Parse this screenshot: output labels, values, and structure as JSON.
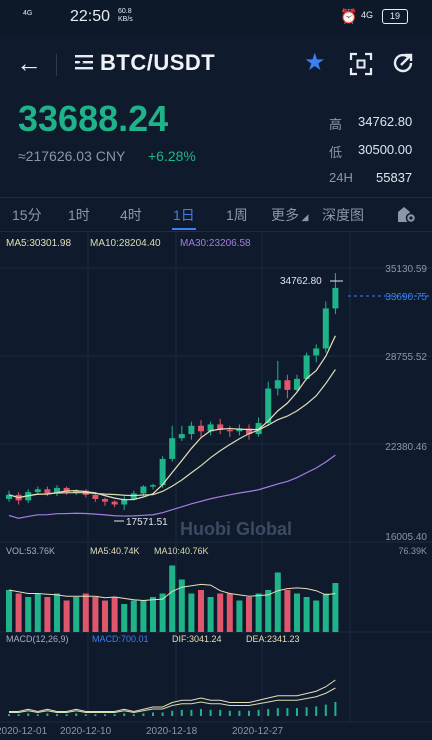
{
  "status_bar": {
    "signal": "4G",
    "time": "22:50",
    "speed": "60.8",
    "speed_unit": "KB/s",
    "network": "4G",
    "battery": "19"
  },
  "header": {
    "pair": "BTC/USDT"
  },
  "ticker": {
    "last": "33688.24",
    "cny": "≈217626.03 CNY",
    "change": "+6.28%",
    "stats": [
      {
        "label": "高",
        "value": "34762.80"
      },
      {
        "label": "低",
        "value": "30500.00"
      },
      {
        "label": "24H",
        "value": "55837"
      }
    ]
  },
  "tabs": [
    "15分",
    "1时",
    "4时",
    "1日",
    "1周",
    "更多",
    "深度图"
  ],
  "active_tab": "1日",
  "indicators": {
    "ma5": "MA5:30301.98",
    "ma10": "MA10:28204.40",
    "ma30": "MA30:23206.58"
  },
  "volume_indicators": {
    "vol": "VOL:53.76K",
    "ma5": "MA5:40.74K",
    "ma10": "MA10:40.76K",
    "max": "76.39K"
  },
  "macd_indicators": {
    "title": "MACD(12,26,9)",
    "macd": "MACD:700.01",
    "dif": "DIF:3041.24",
    "dea": "DEA:2341.23"
  },
  "watermark": "Huobi Global",
  "colors": {
    "up": "#1fb38a",
    "down": "#e0566b",
    "accent": "#3b7ff2",
    "ma5": "#e8dfb8",
    "ma10": "#d8ddb0",
    "ma30": "#a77ce0"
  },
  "chart_data": {
    "type": "candlestick",
    "price_axis": [
      "35130.59",
      "28755.52",
      "22380.46",
      "16005.40"
    ],
    "current_price_label": "33690.75",
    "high_label": "34762.80",
    "low_label": "17571.51",
    "dates": [
      "2020-12-01",
      "2020-12-10",
      "2020-12-18",
      "2020-12-27"
    ],
    "candles": [
      {
        "o": 18400,
        "c": 18700,
        "h": 19000,
        "l": 18200
      },
      {
        "o": 18700,
        "c": 18300,
        "h": 18900,
        "l": 18000
      },
      {
        "o": 18300,
        "c": 18900,
        "h": 19100,
        "l": 18100
      },
      {
        "o": 18900,
        "c": 19100,
        "h": 19300,
        "l": 18700
      },
      {
        "o": 19100,
        "c": 18800,
        "h": 19300,
        "l": 18600
      },
      {
        "o": 18800,
        "c": 19200,
        "h": 19400,
        "l": 18600
      },
      {
        "o": 19200,
        "c": 18900,
        "h": 19300,
        "l": 18700
      },
      {
        "o": 18900,
        "c": 19000,
        "h": 19100,
        "l": 18700
      },
      {
        "o": 19000,
        "c": 18700,
        "h": 19100,
        "l": 18500
      },
      {
        "o": 18700,
        "c": 18400,
        "h": 18800,
        "l": 18200
      },
      {
        "o": 18400,
        "c": 18200,
        "h": 18500,
        "l": 17900
      },
      {
        "o": 18200,
        "c": 18000,
        "h": 18300,
        "l": 17800
      },
      {
        "o": 18000,
        "c": 18400,
        "h": 18600,
        "l": 17600
      },
      {
        "o": 18400,
        "c": 18800,
        "h": 19000,
        "l": 18300
      },
      {
        "o": 18800,
        "c": 19300,
        "h": 19400,
        "l": 18600
      },
      {
        "o": 19300,
        "c": 19400,
        "h": 19500,
        "l": 19100
      },
      {
        "o": 19400,
        "c": 21300,
        "h": 21500,
        "l": 19200
      },
      {
        "o": 21300,
        "c": 22800,
        "h": 23700,
        "l": 21100
      },
      {
        "o": 22800,
        "c": 23100,
        "h": 23700,
        "l": 22600
      },
      {
        "o": 23100,
        "c": 23700,
        "h": 24000,
        "l": 22700
      },
      {
        "o": 23700,
        "c": 23300,
        "h": 24100,
        "l": 22900
      },
      {
        "o": 23300,
        "c": 23800,
        "h": 24000,
        "l": 23000
      },
      {
        "o": 23800,
        "c": 23400,
        "h": 24200,
        "l": 23100
      },
      {
        "o": 23400,
        "c": 23300,
        "h": 23700,
        "l": 22900
      },
      {
        "o": 23300,
        "c": 23500,
        "h": 23800,
        "l": 23000
      },
      {
        "o": 23500,
        "c": 23100,
        "h": 23800,
        "l": 22700
      },
      {
        "o": 23100,
        "c": 23900,
        "h": 24300,
        "l": 22900
      },
      {
        "o": 23900,
        "c": 26400,
        "h": 26900,
        "l": 23700
      },
      {
        "o": 26400,
        "c": 27000,
        "h": 28400,
        "l": 25900
      },
      {
        "o": 27000,
        "c": 26300,
        "h": 27400,
        "l": 25700
      },
      {
        "o": 26300,
        "c": 27100,
        "h": 27400,
        "l": 26100
      },
      {
        "o": 27100,
        "c": 28800,
        "h": 29000,
        "l": 27000
      },
      {
        "o": 28800,
        "c": 29300,
        "h": 29600,
        "l": 28300
      },
      {
        "o": 29300,
        "c": 32200,
        "h": 32700,
        "l": 29000
      },
      {
        "o": 32200,
        "c": 33690,
        "h": 34762,
        "l": 31800
      }
    ],
    "volume": [
      0.6,
      0.55,
      0.5,
      0.55,
      0.5,
      0.55,
      0.45,
      0.5,
      0.55,
      0.5,
      0.45,
      0.5,
      0.4,
      0.45,
      0.45,
      0.5,
      0.55,
      0.95,
      0.75,
      0.55,
      0.6,
      0.5,
      0.55,
      0.55,
      0.45,
      0.5,
      0.55,
      0.6,
      0.85,
      0.6,
      0.55,
      0.5,
      0.45,
      0.55,
      0.7
    ],
    "macd_hist": [
      0.02,
      0.02,
      0.03,
      0.02,
      0.03,
      0.02,
      0.02,
      0.03,
      0.02,
      0.02,
      0.02,
      0.02,
      0.03,
      0.02,
      0.03,
      0.04,
      0.04,
      0.06,
      0.07,
      0.07,
      0.08,
      0.07,
      0.07,
      0.06,
      0.06,
      0.06,
      0.07,
      0.08,
      0.09,
      0.09,
      0.09,
      0.1,
      0.11,
      0.13,
      0.16
    ]
  }
}
